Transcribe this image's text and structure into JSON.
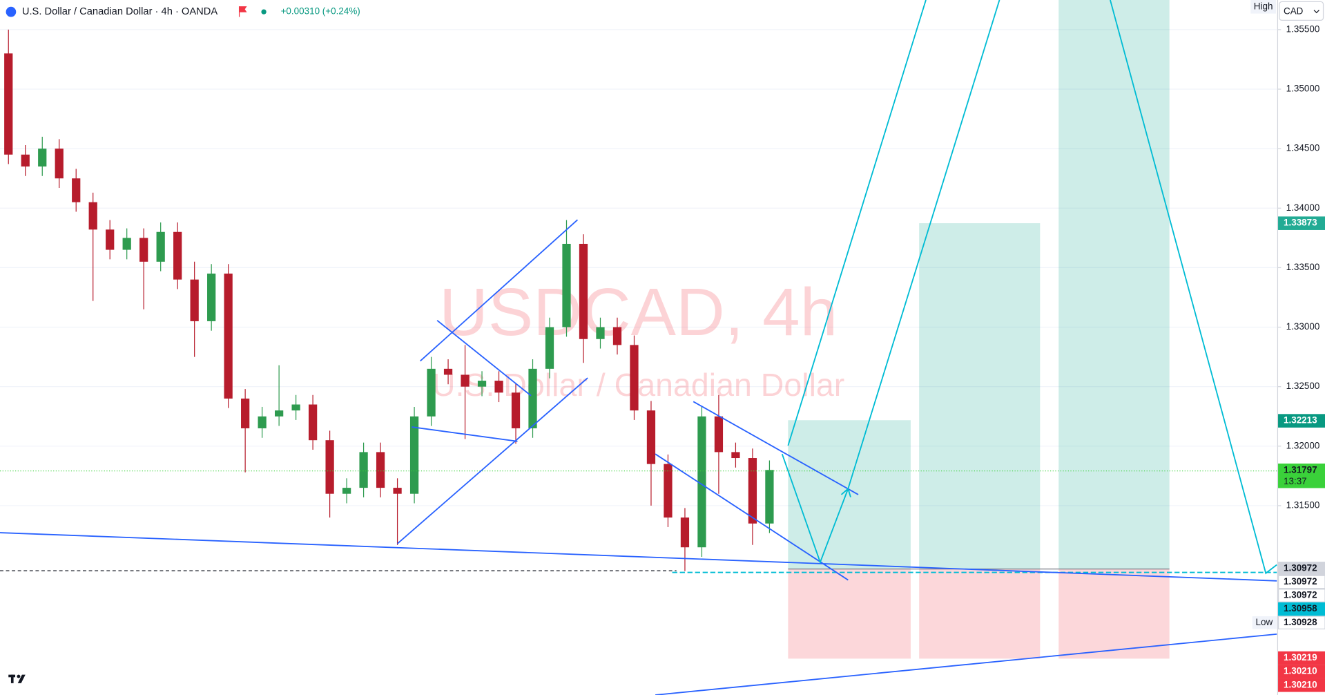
{
  "header": {
    "symbol": "U.S. Dollar / Canadian Dollar · 4h · OANDA",
    "change": "+0.00310 (+0.24%)",
    "currency": "CAD",
    "high_label": "High"
  },
  "watermark": {
    "title": "USDCAD, 4h",
    "subtitle": "U.S. Dollar / Canadian Dollar"
  },
  "chart_data": {
    "type": "candlestick",
    "open": [
      1.353,
      1.3445,
      1.3435,
      1.345,
      1.3425,
      1.3405,
      1.3382,
      1.3365,
      1.3375,
      1.3355,
      1.338,
      1.334,
      1.3305,
      1.3345,
      1.324,
      1.3215,
      1.3225,
      1.323,
      1.3235,
      1.3205,
      1.316,
      1.3165,
      1.3195,
      1.3165,
      1.316,
      1.3225,
      1.3265,
      1.326,
      1.325,
      1.3255,
      1.3245,
      1.3215,
      1.3265,
      1.33,
      1.337,
      1.329,
      1.33,
      1.3285,
      1.323,
      1.3185,
      1.314,
      1.3115,
      1.3225,
      1.3195,
      1.319,
      1.3135
    ],
    "high": [
      1.355,
      1.3453,
      1.346,
      1.3458,
      1.3433,
      1.3413,
      1.339,
      1.3383,
      1.3383,
      1.3388,
      1.3388,
      1.3355,
      1.3353,
      1.3353,
      1.3248,
      1.3233,
      1.3268,
      1.3243,
      1.3243,
      1.3213,
      1.3173,
      1.3203,
      1.3203,
      1.3173,
      1.3233,
      1.3275,
      1.3273,
      1.3285,
      1.3263,
      1.3263,
      1.3253,
      1.3273,
      1.3308,
      1.339,
      1.3378,
      1.3308,
      1.3308,
      1.3293,
      1.3238,
      1.3193,
      1.3148,
      1.3233,
      1.3243,
      1.3203,
      1.3198,
      1.3188
    ],
    "low": [
      1.3437,
      1.3427,
      1.3427,
      1.3417,
      1.3397,
      1.3322,
      1.3357,
      1.3357,
      1.3315,
      1.3347,
      1.3332,
      1.3275,
      1.3297,
      1.3232,
      1.3178,
      1.3207,
      1.3217,
      1.3222,
      1.3197,
      1.314,
      1.3152,
      1.3157,
      1.3157,
      1.3117,
      1.3152,
      1.3217,
      1.3252,
      1.3206,
      1.3242,
      1.3237,
      1.3202,
      1.3207,
      1.3257,
      1.3292,
      1.327,
      1.3282,
      1.3277,
      1.3222,
      1.315,
      1.3132,
      1.3095,
      1.3107,
      1.316,
      1.3182,
      1.3117,
      1.3127
    ],
    "close": [
      1.3445,
      1.3435,
      1.345,
      1.3425,
      1.3405,
      1.3382,
      1.3365,
      1.3375,
      1.3355,
      1.338,
      1.334,
      1.3305,
      1.3345,
      1.324,
      1.3215,
      1.3225,
      1.323,
      1.3235,
      1.3205,
      1.316,
      1.3165,
      1.3195,
      1.3165,
      1.316,
      1.3225,
      1.3265,
      1.326,
      1.325,
      1.3255,
      1.3245,
      1.3215,
      1.3265,
      1.33,
      1.337,
      1.329,
      1.33,
      1.3285,
      1.323,
      1.3185,
      1.314,
      1.3115,
      1.3225,
      1.3195,
      1.319,
      1.3135,
      1.318
    ],
    "up_color": "#2e9b4f",
    "down_color": "#b71c2c",
    "ylim": [
      1.29909,
      1.35749
    ],
    "yticks": [
      {
        "value": 1.315,
        "label": "1.31500"
      },
      {
        "value": 1.32,
        "label": "1.32000"
      },
      {
        "value": 1.325,
        "label": "1.32500"
      },
      {
        "value": 1.33,
        "label": "1.33000"
      },
      {
        "value": 1.335,
        "label": "1.33500"
      },
      {
        "value": 1.34,
        "label": "1.34000"
      },
      {
        "value": 1.345,
        "label": "1.34500"
      },
      {
        "value": 1.35,
        "label": "1.35000"
      },
      {
        "value": 1.355,
        "label": "1.35500"
      }
    ],
    "grid": true,
    "countdown": "13:37",
    "price_labels": [
      {
        "value": 1.33873,
        "label": "1.33873",
        "color": "#22ab94",
        "text_color": "#ffffff"
      },
      {
        "value": 1.32213,
        "label": "1.32213",
        "color": "#089981",
        "text_color": "#ffffff"
      },
      {
        "value": 1.31797,
        "label": "1.31797",
        "color": "#3ad13a",
        "text_color": "#131722"
      },
      {
        "value": 1.30972,
        "label": "1.30972",
        "color": "#d1d4dc",
        "text_color": "#131722"
      },
      {
        "value": 1.30972,
        "label": "1.30972",
        "color": "#ffffff",
        "text_color": "#131722"
      },
      {
        "value": 1.30972,
        "label": "1.30972",
        "color": "#ffffff",
        "text_color": "#131722"
      },
      {
        "value": 1.30958,
        "label": "1.30958",
        "color": "#00bcd4",
        "text_color": "#131722"
      },
      {
        "value": 1.30928,
        "label": "1.30928",
        "color": "#ffffff",
        "text_color": "#131722",
        "tag": "Low"
      },
      {
        "value": 1.30219,
        "label": "1.30219",
        "color": "#f23645",
        "text_color": "#ffffff"
      },
      {
        "value": 1.3021,
        "label": "1.30210",
        "color": "#f23645",
        "text_color": "#ffffff"
      },
      {
        "value": 1.3021,
        "label": "1.30210",
        "color": "#f23645",
        "text_color": "#ffffff"
      }
    ]
  }
}
